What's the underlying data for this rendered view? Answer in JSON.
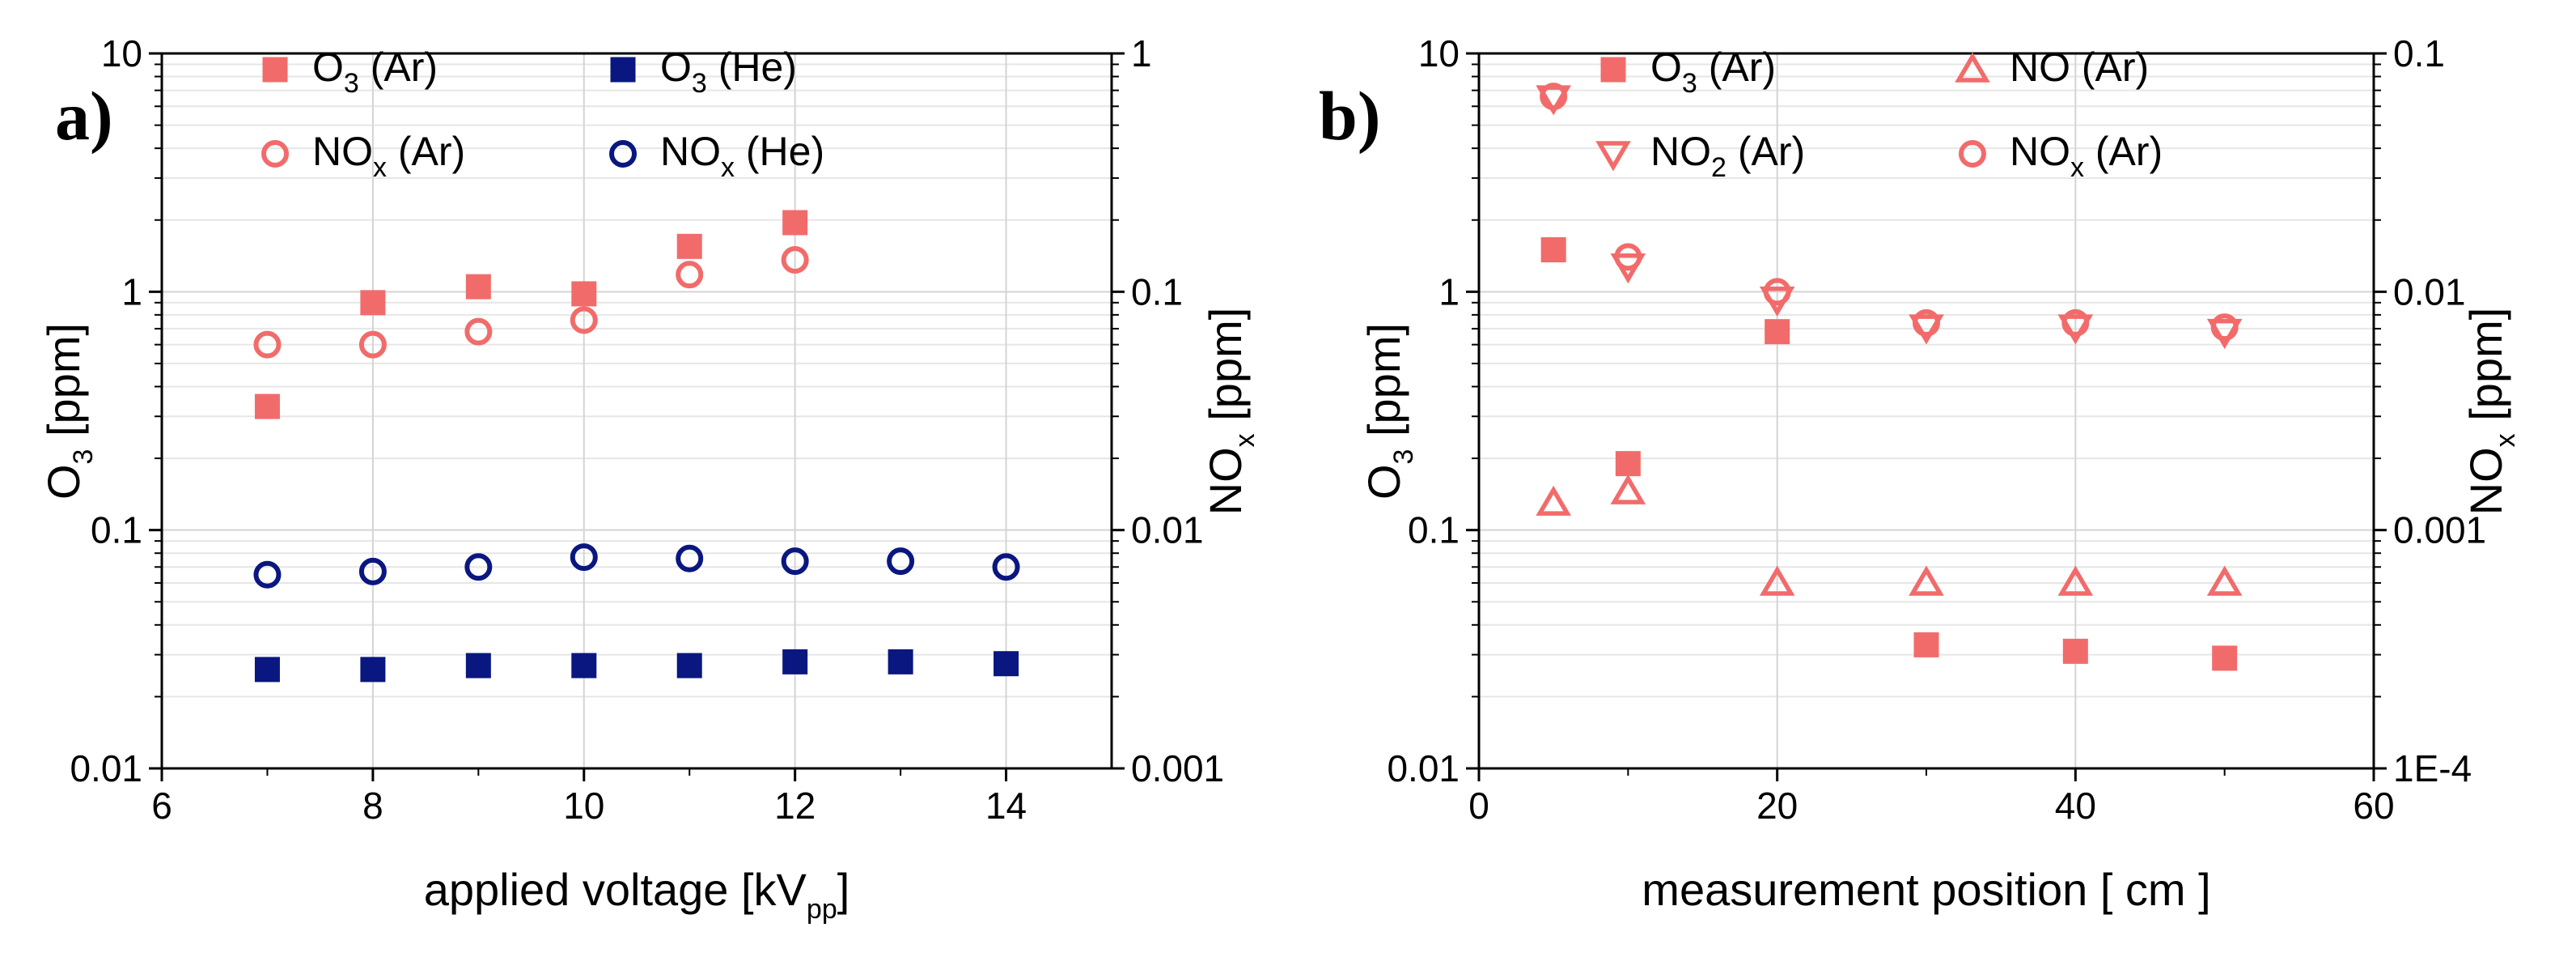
{
  "colors": {
    "ar": "#f26b6b",
    "he": "#0a1780",
    "grid_major": "#d4d4d4",
    "grid_minor": "#e6e6e6",
    "axis": "#000000"
  },
  "chart_data": [
    {
      "type": "scatter",
      "panel_label": "a)",
      "xlabel": {
        "main": "applied voltage [kV",
        "sub": "pp",
        "tail": "]"
      },
      "ylabel_left": {
        "main": "O",
        "sub": "3",
        "tail": " [ppm]"
      },
      "ylabel_right": {
        "main": "NO",
        "sub": "x",
        "tail": " [ppm]"
      },
      "xlim": [
        6,
        15
      ],
      "ylim_left": [
        0.01,
        10
      ],
      "ylim_right": [
        0.001,
        1
      ],
      "yscale": "log",
      "grid": true,
      "x_ticks": [
        6,
        8,
        10,
        12,
        14
      ],
      "x_tick_labels": [
        "6",
        "8",
        "10",
        "12",
        "14"
      ],
      "y_left_ticks": [
        0.01,
        0.1,
        1,
        10
      ],
      "y_left_tick_labels": [
        "0.01",
        "0.1",
        "1",
        "10"
      ],
      "y_right_ticks": [
        0.001,
        0.01,
        0.1,
        1
      ],
      "y_right_tick_labels": [
        "0.001",
        "0.01",
        "0.1",
        "1"
      ],
      "series": [
        {
          "name": "O3 (Ar)",
          "label_main": "O",
          "label_sub": "3",
          "label_tail": " (Ar)",
          "marker": "square-filled",
          "color": "ar",
          "axis": "left",
          "x": [
            7,
            8,
            9,
            10,
            11,
            12
          ],
          "y": [
            0.33,
            0.9,
            1.05,
            0.98,
            1.55,
            1.95
          ]
        },
        {
          "name": "NOx (Ar)",
          "label_main": "NO",
          "label_sub": "x",
          "label_tail": " (Ar)",
          "marker": "circle-open",
          "color": "ar",
          "axis": "right",
          "x": [
            7,
            8,
            9,
            10,
            11,
            12
          ],
          "y": [
            0.06,
            0.06,
            0.068,
            0.076,
            0.118,
            0.136
          ]
        },
        {
          "name": "O3 (He)",
          "label_main": "O",
          "label_sub": "3",
          "label_tail": " (He)",
          "marker": "square-filled",
          "color": "he",
          "axis": "left",
          "x": [
            7,
            8,
            9,
            10,
            11,
            12,
            13,
            14
          ],
          "y": [
            0.026,
            0.026,
            0.027,
            0.027,
            0.027,
            0.028,
            0.028,
            0.0275
          ]
        },
        {
          "name": "NOx (He)",
          "label_main": "NO",
          "label_sub": "x",
          "label_tail": " (He)",
          "marker": "circle-open",
          "color": "he",
          "axis": "right",
          "x": [
            7,
            8,
            9,
            10,
            11,
            12,
            13,
            14
          ],
          "y": [
            0.0065,
            0.0067,
            0.007,
            0.0077,
            0.0076,
            0.0074,
            0.0074,
            0.007
          ]
        }
      ],
      "legend_order": [
        0,
        1,
        2,
        3
      ]
    },
    {
      "type": "scatter",
      "panel_label": "b)",
      "xlabel": {
        "main": "measurement position",
        "bracket_open": "[",
        "unit": "cm",
        "bracket_close": "]"
      },
      "ylabel_left": {
        "main": "O",
        "sub": "3",
        "tail": " [ppm]"
      },
      "ylabel_right": {
        "main": "NO",
        "sub": "x",
        "tail": "  [ppm]"
      },
      "xlim": [
        0,
        60
      ],
      "ylim_left": [
        0.01,
        10
      ],
      "ylim_right": [
        0.0001,
        0.1
      ],
      "yscale": "log",
      "grid": true,
      "x_ticks": [
        0,
        20,
        40,
        60
      ],
      "x_tick_labels": [
        "0",
        "20",
        "40",
        "60"
      ],
      "y_left_ticks": [
        0.01,
        0.1,
        1,
        10
      ],
      "y_left_tick_labels": [
        "0.01",
        "0.1",
        "1",
        "10"
      ],
      "y_right_ticks": [
        0.0001,
        0.001,
        0.01,
        0.1
      ],
      "y_right_tick_labels": [
        "1E-4",
        "0.001",
        "0.01",
        "0.1"
      ],
      "series": [
        {
          "name": "O3 (Ar)",
          "label_main": "O",
          "label_sub": "3",
          "label_tail": " (Ar)",
          "marker": "square-filled",
          "color": "ar",
          "axis": "left",
          "x": [
            5,
            10,
            20,
            30,
            40,
            50
          ],
          "y": [
            1.5,
            0.19,
            0.68,
            0.033,
            0.031,
            0.029
          ]
        },
        {
          "name": "NO (Ar)",
          "label_main": "NO (Ar)",
          "label_sub": "",
          "label_tail": "",
          "marker": "triangle-up-open",
          "color": "ar",
          "axis": "right",
          "x": [
            5,
            10,
            20,
            30,
            40,
            50
          ],
          "y": [
            0.0013,
            0.00145,
            0.0006,
            0.0006,
            0.0006,
            0.0006
          ]
        },
        {
          "name": "NO2 (Ar)",
          "label_main": "NO",
          "label_sub": "2",
          "label_tail": " (Ar)",
          "marker": "triangle-down-open",
          "color": "ar",
          "axis": "right",
          "x": [
            5,
            10,
            20,
            30,
            40,
            50
          ],
          "y": [
            0.065,
            0.0128,
            0.0093,
            0.0071,
            0.0071,
            0.0068
          ]
        },
        {
          "name": "NOx (Ar)",
          "label_main": "NO",
          "label_sub": "x",
          "label_tail": " (Ar)",
          "marker": "circle-open",
          "color": "ar",
          "axis": "right",
          "x": [
            5,
            10,
            20,
            30,
            40,
            50
          ],
          "y": [
            0.066,
            0.014,
            0.01,
            0.0074,
            0.0074,
            0.0071
          ]
        }
      ],
      "legend_order": [
        0,
        2,
        1,
        3
      ]
    }
  ]
}
